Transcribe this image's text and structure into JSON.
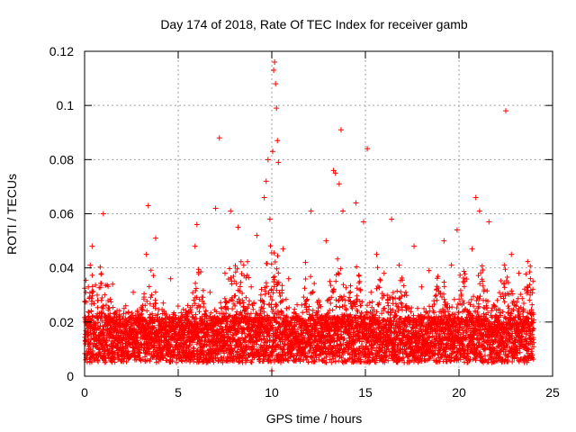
{
  "chart_data": {
    "type": "scatter",
    "title": "Day 174 of 2018, Rate Of TEC Index for receiver gamb",
    "xlabel": "GPS time / hours",
    "ylabel": "ROTI / TECUs",
    "xlim": [
      0,
      25
    ],
    "ylim": [
      0,
      0.12
    ],
    "xticks": [
      0,
      5,
      10,
      15,
      20,
      25
    ],
    "xtick_labels": [
      "0",
      "5",
      "10",
      "15",
      "20",
      "25"
    ],
    "yticks": [
      0,
      0.02,
      0.04,
      0.06,
      0.08,
      0.1,
      0.12
    ],
    "ytick_labels": [
      "0",
      "0.02",
      "0.04",
      "0.06",
      "0.08",
      "0.1",
      "0.12"
    ],
    "grid": true,
    "marker": "+",
    "color": "#ff0000",
    "series": [
      {
        "name": "ROTI",
        "x": [
          0.05,
          0.2,
          0.3,
          0.4,
          0.5,
          0.9,
          1.0,
          1.2,
          1.5,
          1.8,
          2.2,
          2.6,
          3.0,
          3.3,
          3.4,
          3.6,
          3.8,
          4.2,
          4.6,
          5.0,
          5.5,
          5.9,
          6.0,
          6.3,
          6.7,
          7.0,
          7.2,
          7.5,
          7.8,
          8.0,
          8.2,
          8.5,
          8.9,
          9.2,
          9.4,
          9.6,
          9.7,
          9.8,
          9.9,
          10.0,
          10.05,
          10.1,
          10.15,
          10.2,
          10.25,
          10.3,
          10.35,
          10.6,
          10.9,
          11.3,
          11.8,
          12.1,
          12.5,
          12.9,
          13.1,
          13.3,
          13.4,
          13.6,
          13.7,
          13.8,
          14.1,
          14.5,
          14.9,
          15.1,
          15.3,
          15.6,
          16.0,
          16.4,
          16.8,
          17.2,
          17.6,
          18.0,
          18.4,
          18.8,
          19.2,
          19.6,
          19.9,
          20.3,
          20.7,
          20.9,
          21.1,
          21.3,
          21.6,
          22.0,
          22.4,
          22.5,
          22.8,
          23.2,
          23.5,
          23.8
        ],
        "y": [
          0.012,
          0.033,
          0.041,
          0.048,
          0.019,
          0.028,
          0.06,
          0.022,
          0.034,
          0.015,
          0.026,
          0.031,
          0.012,
          0.045,
          0.063,
          0.018,
          0.051,
          0.027,
          0.036,
          0.014,
          0.022,
          0.048,
          0.056,
          0.019,
          0.031,
          0.062,
          0.088,
          0.038,
          0.061,
          0.022,
          0.055,
          0.041,
          0.033,
          0.052,
          0.028,
          0.066,
          0.072,
          0.08,
          0.058,
          0.002,
          0.083,
          0.113,
          0.116,
          0.108,
          0.099,
          0.087,
          0.079,
          0.047,
          0.036,
          0.019,
          0.042,
          0.061,
          0.028,
          0.05,
          0.035,
          0.076,
          0.075,
          0.071,
          0.091,
          0.061,
          0.022,
          0.064,
          0.057,
          0.084,
          0.031,
          0.045,
          0.038,
          0.058,
          0.041,
          0.026,
          0.048,
          0.033,
          0.039,
          0.022,
          0.05,
          0.041,
          0.054,
          0.035,
          0.047,
          0.066,
          0.061,
          0.028,
          0.057,
          0.022,
          0.034,
          0.098,
          0.045,
          0.038,
          0.019,
          0.03
        ]
      }
    ]
  }
}
